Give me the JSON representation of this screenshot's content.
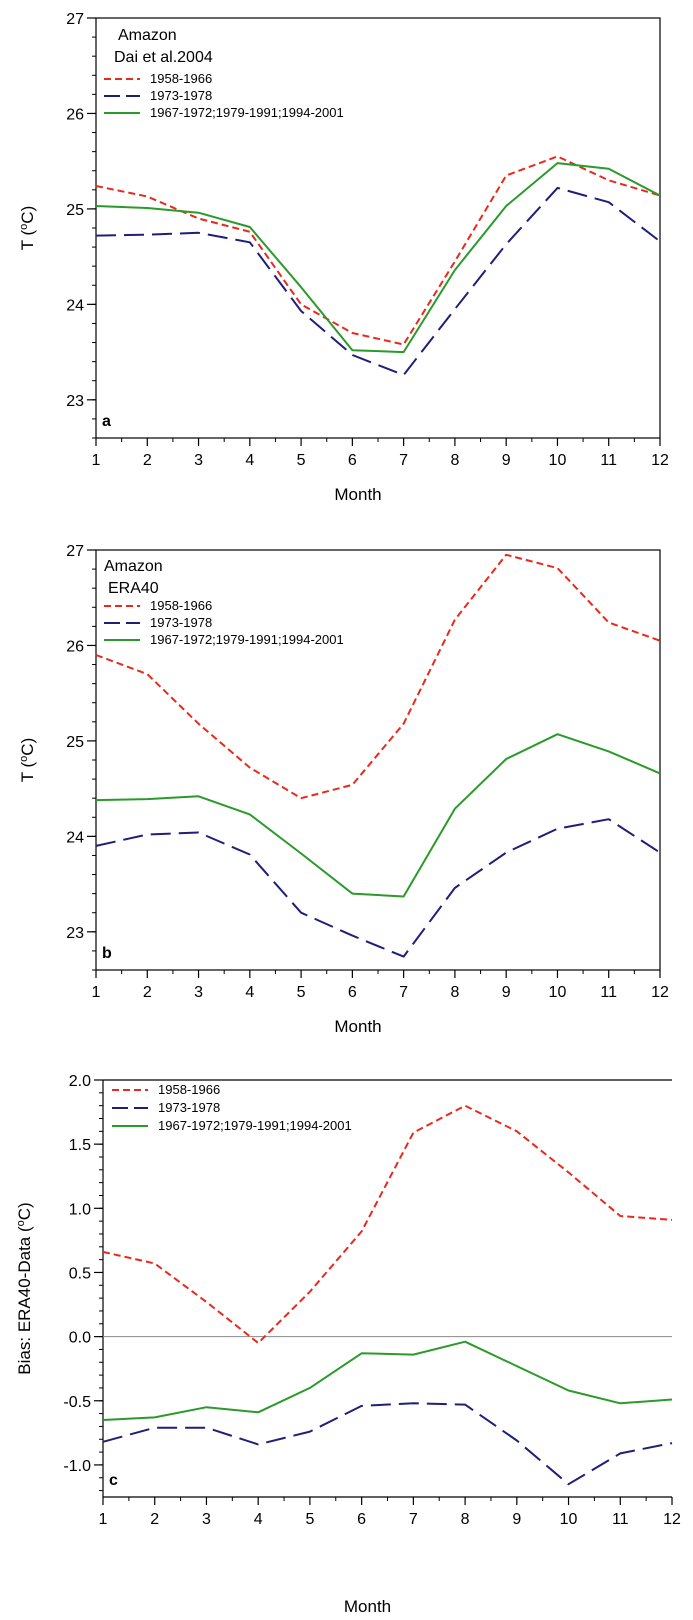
{
  "chart_data": [
    {
      "type": "line",
      "panel": "a",
      "annotations": [
        "Amazon",
        "Dai et al.2004"
      ],
      "xlabel": "Month",
      "ylabel": "T (oC)",
      "ylabel_main": "T (",
      "ylabel_sup": "o",
      "ylabel_tail": "C)",
      "x": [
        1,
        2,
        3,
        4,
        5,
        6,
        7,
        8,
        9,
        10,
        11,
        12
      ],
      "xticks": [
        "1",
        "2",
        "3",
        "4",
        "5",
        "6",
        "7",
        "8",
        "9",
        "10",
        "11",
        "12"
      ],
      "xlim": [
        1,
        12
      ],
      "ylim": [
        22.6,
        27.0
      ],
      "yticks": [
        23,
        24,
        25,
        26,
        27
      ],
      "ytick_labels": [
        "23",
        "24",
        "25",
        "26",
        "27"
      ],
      "zero_line": false,
      "legend_position": "top-left",
      "series": [
        {
          "name": "1958-1966",
          "color": "#e8291c",
          "style": "dashed",
          "values": [
            25.24,
            25.13,
            24.9,
            24.76,
            24.0,
            23.7,
            23.58,
            24.45,
            25.35,
            25.55,
            25.3,
            25.14
          ]
        },
        {
          "name": "1973-1978",
          "color": "#1f1f7a",
          "style": "longdash",
          "values": [
            24.72,
            24.73,
            24.75,
            24.65,
            23.93,
            23.47,
            23.26,
            23.95,
            24.63,
            25.22,
            25.07,
            24.66
          ]
        },
        {
          "name": "1967-1972;1979-1991;1994-2001",
          "color": "#2a9a2a",
          "style": "solid",
          "values": [
            25.03,
            25.01,
            24.96,
            24.81,
            24.18,
            23.52,
            23.5,
            24.36,
            25.03,
            25.48,
            25.42,
            25.14
          ]
        }
      ]
    },
    {
      "type": "line",
      "panel": "b",
      "annotations": [
        "Amazon",
        "ERA40"
      ],
      "xlabel": "Month",
      "ylabel": "T (oC)",
      "ylabel_main": "T (",
      "ylabel_sup": "o",
      "ylabel_tail": "C)",
      "x": [
        1,
        2,
        3,
        4,
        5,
        6,
        7,
        8,
        9,
        10,
        11,
        12
      ],
      "xticks": [
        "1",
        "2",
        "3",
        "4",
        "5",
        "6",
        "7",
        "8",
        "9",
        "10",
        "11",
        "12"
      ],
      "xlim": [
        1,
        12
      ],
      "ylim": [
        22.6,
        27.0
      ],
      "yticks": [
        23,
        24,
        25,
        26,
        27
      ],
      "ytick_labels": [
        "23",
        "24",
        "25",
        "26",
        "27"
      ],
      "zero_line": false,
      "legend_position": "top-left",
      "series": [
        {
          "name": "1958-1966",
          "color": "#e8291c",
          "style": "dashed",
          "values": [
            25.9,
            25.7,
            25.18,
            24.72,
            24.4,
            24.54,
            25.18,
            26.27,
            26.95,
            26.81,
            26.24,
            26.05
          ]
        },
        {
          "name": "1973-1978",
          "color": "#1f1f7a",
          "style": "longdash",
          "values": [
            23.9,
            24.02,
            24.04,
            23.81,
            23.2,
            22.96,
            22.74,
            23.46,
            23.83,
            24.08,
            24.18,
            23.83
          ]
        },
        {
          "name": "1967-1972;1979-1991;1994-2001",
          "color": "#2a9a2a",
          "style": "solid",
          "values": [
            24.38,
            24.39,
            24.42,
            24.23,
            23.82,
            23.4,
            23.37,
            24.29,
            24.81,
            25.07,
            24.89,
            24.66
          ]
        }
      ]
    },
    {
      "type": "line",
      "panel": "c",
      "annotations": [],
      "xlabel": "Month",
      "ylabel": "Bias: ERA40-Data (oC)",
      "ylabel_main": "Bias: ERA40-Data (",
      "ylabel_sup": "o",
      "ylabel_tail": "C)",
      "x": [
        1,
        2,
        3,
        4,
        5,
        6,
        7,
        8,
        9,
        10,
        11,
        12
      ],
      "xticks": [
        "1",
        "2",
        "3",
        "4",
        "5",
        "6",
        "7",
        "8",
        "9",
        "10",
        "11",
        "12"
      ],
      "xlim": [
        1,
        12
      ],
      "ylim": [
        -1.25,
        2.0
      ],
      "yticks": [
        -1.0,
        -0.5,
        0.0,
        0.5,
        1.0,
        1.5,
        2.0
      ],
      "ytick_labels": [
        "-1.0",
        "-0.5",
        "0.0",
        "0.5",
        "1.0",
        "1.5",
        "2.0"
      ],
      "zero_line": true,
      "legend_position": "top-left",
      "series": [
        {
          "name": "1958-1966",
          "color": "#e8291c",
          "style": "dashed",
          "values": [
            0.66,
            0.57,
            0.27,
            -0.05,
            0.35,
            0.82,
            1.59,
            1.8,
            1.6,
            1.28,
            0.94,
            0.91
          ]
        },
        {
          "name": "1973-1978",
          "color": "#1f1f7a",
          "style": "longdash",
          "values": [
            -0.82,
            -0.71,
            -0.71,
            -0.84,
            -0.74,
            -0.54,
            -0.52,
            -0.53,
            -0.81,
            -1.15,
            -0.91,
            -0.83
          ]
        },
        {
          "name": "1967-1972;1979-1991;1994-2001",
          "color": "#2a9a2a",
          "style": "solid",
          "values": [
            -0.65,
            -0.63,
            -0.55,
            -0.59,
            -0.4,
            -0.13,
            -0.14,
            -0.04,
            -0.23,
            -0.42,
            -0.52,
            -0.49
          ]
        }
      ]
    }
  ]
}
